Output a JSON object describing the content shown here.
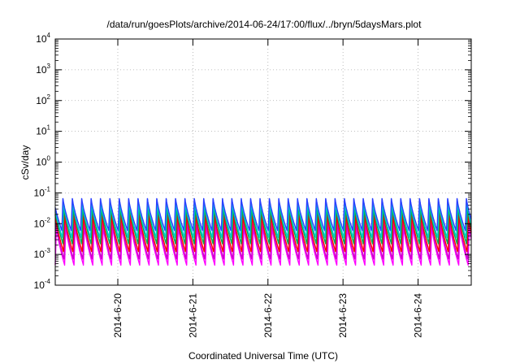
{
  "chart_data": {
    "type": "line",
    "title": "/data/run/goesPlots/archive/2014-06-24/17:00/flux/../bryn/5daysMars.plot",
    "xlabel": "Coordinated Universal Time (UTC)",
    "ylabel": "cSv/day",
    "yscale": "log",
    "ylim": [
      0.0001,
      10000
    ],
    "y_ticks": [
      {
        "base": "10",
        "exp": "-4"
      },
      {
        "base": "10",
        "exp": "-3"
      },
      {
        "base": "10",
        "exp": "-2"
      },
      {
        "base": "10",
        "exp": "-1"
      },
      {
        "base": "10",
        "exp": "0"
      },
      {
        "base": "10",
        "exp": "1"
      },
      {
        "base": "10",
        "exp": "2"
      },
      {
        "base": "10",
        "exp": "3"
      },
      {
        "base": "10",
        "exp": "4"
      }
    ],
    "xlim": [
      "2014-06-19T04:00",
      "2014-06-24T17:00"
    ],
    "x_ticks": [
      "2014-6-20",
      "2014-6-21",
      "2014-6-22",
      "2014-6-23",
      "2014-6-24"
    ],
    "grid": true,
    "cycle_hours": 3,
    "series": [
      {
        "color": "#ff00ff",
        "peak": 0.0085,
        "trough": 0.00045
      },
      {
        "color": "#cc00cc",
        "peak": 0.012,
        "trough": 0.0007
      },
      {
        "color": "#ff0000",
        "peak": 0.02,
        "trough": 0.0012
      },
      {
        "color": "#00aa55",
        "peak": 0.035,
        "trough": 0.0022
      },
      {
        "color": "#00cccc",
        "peak": 0.05,
        "trough": 0.0035
      },
      {
        "color": "#2a3fff",
        "peak": 0.07,
        "trough": 0.006
      }
    ]
  }
}
